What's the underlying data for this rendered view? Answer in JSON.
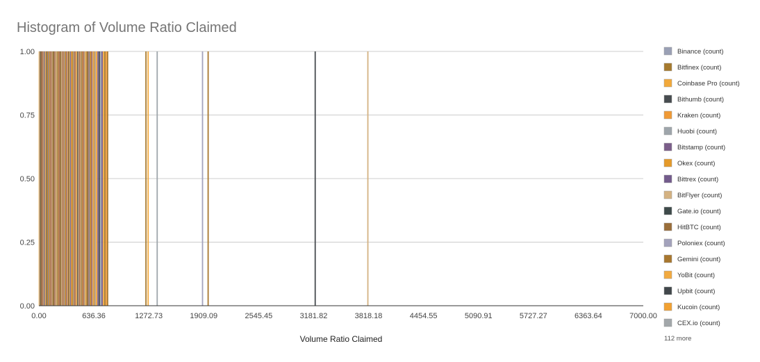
{
  "chart_data": {
    "type": "bar",
    "title": "Histogram of Volume Ratio Claimed",
    "xlabel": "Volume Ratio Claimed",
    "ylabel": "",
    "xlim": [
      0,
      7000
    ],
    "ylim": [
      0,
      1
    ],
    "x_ticks": [
      "0.00",
      "636.36",
      "1272.73",
      "1909.09",
      "2545.45",
      "3181.82",
      "3818.18",
      "4454.55",
      "5090.91",
      "5727.27",
      "6363.64",
      "7000.00"
    ],
    "y_ticks": [
      "1.00",
      "0.75",
      "0.50",
      "0.25",
      "0.00"
    ],
    "grid": true,
    "legend_position": "right",
    "legend": [
      {
        "name": "Binance (count)",
        "color": "#9AA0B5"
      },
      {
        "name": "Bitfinex (count)",
        "color": "#A67A2E"
      },
      {
        "name": "Coinbase Pro (count)",
        "color": "#F2A93B"
      },
      {
        "name": "Bithumb (count)",
        "color": "#474C50"
      },
      {
        "name": "Kraken (count)",
        "color": "#F09A36"
      },
      {
        "name": "Huobi (count)",
        "color": "#9EA5AB"
      },
      {
        "name": "Bitstamp (count)",
        "color": "#7B5E8A"
      },
      {
        "name": "Okex (count)",
        "color": "#E59A2A"
      },
      {
        "name": "Bittrex (count)",
        "color": "#735B8C"
      },
      {
        "name": "BitFlyer (count)",
        "color": "#D4B282"
      },
      {
        "name": "Gate.io (count)",
        "color": "#3E4A4A"
      },
      {
        "name": "HitBTC (count)",
        "color": "#9A6E3A"
      },
      {
        "name": "Poloniex (count)",
        "color": "#A3A2BC"
      },
      {
        "name": "Gemini (count)",
        "color": "#A8772E"
      },
      {
        "name": "YoBit (count)",
        "color": "#F2AA40"
      },
      {
        "name": "Upbit (count)",
        "color": "#41474B"
      },
      {
        "name": "Kucoin (count)",
        "color": "#F2A132"
      },
      {
        "name": "CEX.io (count)",
        "color": "#A2A7AA"
      }
    ],
    "more_label": "112 more",
    "series": [
      {
        "x": 5,
        "value": 1,
        "color": "#F2A93B"
      },
      {
        "x": 12,
        "value": 1,
        "color": "#9AA0B5"
      },
      {
        "x": 20,
        "value": 1,
        "color": "#A67A2E"
      },
      {
        "x": 28,
        "value": 1,
        "color": "#474C50"
      },
      {
        "x": 36,
        "value": 1,
        "color": "#F09A36"
      },
      {
        "x": 44,
        "value": 1,
        "color": "#7B5E8A"
      },
      {
        "x": 52,
        "value": 1,
        "color": "#E59A2A"
      },
      {
        "x": 60,
        "value": 1,
        "color": "#9EA5AB"
      },
      {
        "x": 68,
        "value": 1,
        "color": "#735B8C"
      },
      {
        "x": 76,
        "value": 1,
        "color": "#F2AA40"
      },
      {
        "x": 84,
        "value": 1,
        "color": "#D4B282"
      },
      {
        "x": 92,
        "value": 1,
        "color": "#3E4A4A"
      },
      {
        "x": 100,
        "value": 1,
        "color": "#F2A132"
      },
      {
        "x": 108,
        "value": 1,
        "color": "#9A6E3A"
      },
      {
        "x": 116,
        "value": 1,
        "color": "#A3A2BC"
      },
      {
        "x": 124,
        "value": 1,
        "color": "#A8772E"
      },
      {
        "x": 132,
        "value": 1,
        "color": "#F2A93B"
      },
      {
        "x": 140,
        "value": 1,
        "color": "#735B8C"
      },
      {
        "x": 148,
        "value": 1,
        "color": "#F09A36"
      },
      {
        "x": 156,
        "value": 1,
        "color": "#9AA0B5"
      },
      {
        "x": 164,
        "value": 1,
        "color": "#E59A2A"
      },
      {
        "x": 172,
        "value": 1,
        "color": "#41474B"
      },
      {
        "x": 180,
        "value": 1,
        "color": "#F2A93B"
      },
      {
        "x": 188,
        "value": 1,
        "color": "#7B5E8A"
      },
      {
        "x": 196,
        "value": 1,
        "color": "#D4B282"
      },
      {
        "x": 204,
        "value": 1,
        "color": "#F2AA40"
      },
      {
        "x": 212,
        "value": 1,
        "color": "#9EA5AB"
      },
      {
        "x": 220,
        "value": 1,
        "color": "#A67A2E"
      },
      {
        "x": 228,
        "value": 1,
        "color": "#F2A132"
      },
      {
        "x": 236,
        "value": 1,
        "color": "#735B8C"
      },
      {
        "x": 244,
        "value": 1,
        "color": "#F09A36"
      },
      {
        "x": 252,
        "value": 1,
        "color": "#3E4A4A"
      },
      {
        "x": 260,
        "value": 1,
        "color": "#F2A93B"
      },
      {
        "x": 268,
        "value": 1,
        "color": "#A3A2BC"
      },
      {
        "x": 276,
        "value": 1,
        "color": "#E59A2A"
      },
      {
        "x": 284,
        "value": 1,
        "color": "#7B5E8A"
      },
      {
        "x": 292,
        "value": 1,
        "color": "#F2AA40"
      },
      {
        "x": 300,
        "value": 1,
        "color": "#9AA0B5"
      },
      {
        "x": 308,
        "value": 1,
        "color": "#A8772E"
      },
      {
        "x": 316,
        "value": 1,
        "color": "#F2A132"
      },
      {
        "x": 324,
        "value": 1,
        "color": "#735B8C"
      },
      {
        "x": 332,
        "value": 1,
        "color": "#D4B282"
      },
      {
        "x": 340,
        "value": 1,
        "color": "#F09A36"
      },
      {
        "x": 348,
        "value": 1,
        "color": "#474C50"
      },
      {
        "x": 356,
        "value": 1,
        "color": "#F2A93B"
      },
      {
        "x": 364,
        "value": 1,
        "color": "#9EA5AB"
      },
      {
        "x": 372,
        "value": 1,
        "color": "#7B5E8A"
      },
      {
        "x": 380,
        "value": 1,
        "color": "#E59A2A"
      },
      {
        "x": 388,
        "value": 1,
        "color": "#F2AA40"
      },
      {
        "x": 396,
        "value": 1,
        "color": "#A67A2E"
      },
      {
        "x": 404,
        "value": 1,
        "color": "#9AA0B5"
      },
      {
        "x": 412,
        "value": 1,
        "color": "#F2A132"
      },
      {
        "x": 420,
        "value": 1,
        "color": "#735B8C"
      },
      {
        "x": 428,
        "value": 1,
        "color": "#F09A36"
      },
      {
        "x": 436,
        "value": 1,
        "color": "#D4B282"
      },
      {
        "x": 444,
        "value": 1,
        "color": "#F2A93B"
      },
      {
        "x": 452,
        "value": 1,
        "color": "#3E4A4A"
      },
      {
        "x": 460,
        "value": 1,
        "color": "#A3A2BC"
      },
      {
        "x": 468,
        "value": 1,
        "color": "#E59A2A"
      },
      {
        "x": 476,
        "value": 1,
        "color": "#7B5E8A"
      },
      {
        "x": 484,
        "value": 1,
        "color": "#F2AA40"
      },
      {
        "x": 492,
        "value": 1,
        "color": "#9EA5AB"
      },
      {
        "x": 500,
        "value": 1,
        "color": "#A8772E"
      },
      {
        "x": 508,
        "value": 1,
        "color": "#F2A132"
      },
      {
        "x": 516,
        "value": 1,
        "color": "#735B8C"
      },
      {
        "x": 524,
        "value": 1,
        "color": "#F09A36"
      },
      {
        "x": 532,
        "value": 1,
        "color": "#9AA0B5"
      },
      {
        "x": 540,
        "value": 1,
        "color": "#F2A93B"
      },
      {
        "x": 548,
        "value": 1,
        "color": "#D4B282"
      },
      {
        "x": 556,
        "value": 1,
        "color": "#E59A2A"
      },
      {
        "x": 564,
        "value": 1,
        "color": "#41474B"
      },
      {
        "x": 572,
        "value": 1,
        "color": "#F2AA40"
      },
      {
        "x": 580,
        "value": 1,
        "color": "#7B5E8A"
      },
      {
        "x": 588,
        "value": 1,
        "color": "#9EA5AB"
      },
      {
        "x": 596,
        "value": 1,
        "color": "#A67A2E"
      },
      {
        "x": 604,
        "value": 1,
        "color": "#F2A132"
      },
      {
        "x": 612,
        "value": 1,
        "color": "#735B8C"
      },
      {
        "x": 620,
        "value": 1,
        "color": "#F09A36"
      },
      {
        "x": 628,
        "value": 1,
        "color": "#A3A2BC"
      },
      {
        "x": 636,
        "value": 1,
        "color": "#F2A93B"
      },
      {
        "x": 644,
        "value": 1,
        "color": "#E59A2A"
      },
      {
        "x": 652,
        "value": 1,
        "color": "#9AA0B5"
      },
      {
        "x": 660,
        "value": 1,
        "color": "#D4B282"
      },
      {
        "x": 668,
        "value": 1,
        "color": "#F2AA40"
      },
      {
        "x": 684,
        "value": 1,
        "color": "#7B5E8A"
      },
      {
        "x": 700,
        "value": 1,
        "color": "#474C50"
      },
      {
        "x": 716,
        "value": 1,
        "color": "#9EA5AB"
      },
      {
        "x": 732,
        "value": 1,
        "color": "#735B8C"
      },
      {
        "x": 748,
        "value": 1,
        "color": "#F2A93B"
      },
      {
        "x": 764,
        "value": 1,
        "color": "#A67A2E"
      },
      {
        "x": 780,
        "value": 1,
        "color": "#F09A36"
      },
      {
        "x": 796,
        "value": 1,
        "color": "#A8772E"
      },
      {
        "x": 1240,
        "value": 1,
        "color": "#A67A2E"
      },
      {
        "x": 1265,
        "value": 1,
        "color": "#F2A93B"
      },
      {
        "x": 1370,
        "value": 1,
        "color": "#9EA5AB"
      },
      {
        "x": 1895,
        "value": 1,
        "color": "#A3A2BC"
      },
      {
        "x": 1960,
        "value": 1,
        "color": "#A8772E"
      },
      {
        "x": 3200,
        "value": 1,
        "color": "#474C50"
      },
      {
        "x": 3810,
        "value": 1,
        "color": "#D4B282"
      }
    ]
  }
}
